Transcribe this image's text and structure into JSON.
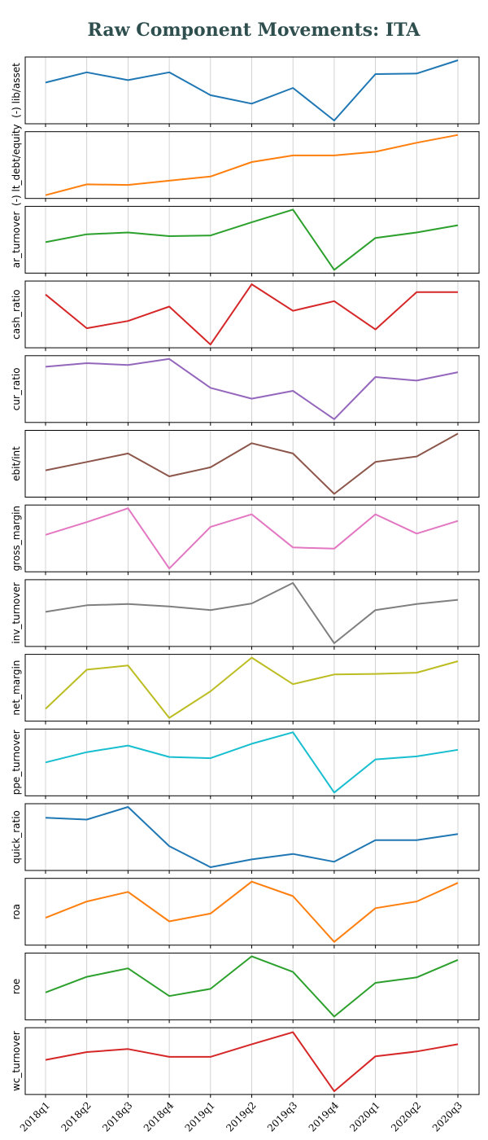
{
  "chart_data": {
    "type": "line",
    "title": "Raw Component Movements: ITA",
    "x": [
      "2018q1",
      "2018q2",
      "2018q3",
      "2018q4",
      "2019q1",
      "2019q2",
      "2019q3",
      "2019q4",
      "2020q1",
      "2020q2",
      "2020q3"
    ],
    "grid": "vertical",
    "panels": [
      {
        "ylabel": "(-) lib/asset",
        "color": "#1f77b4",
        "values": [
          0.63,
          0.8,
          0.67,
          0.8,
          0.42,
          0.28,
          0.54,
          0.0,
          0.77,
          0.78,
          1.0
        ]
      },
      {
        "ylabel": "(-) lt_debt/equity",
        "color": "#ff7f0e",
        "values": [
          0.0,
          0.18,
          0.17,
          0.24,
          0.31,
          0.55,
          0.66,
          0.66,
          0.72,
          0.87,
          1.0
        ]
      },
      {
        "ylabel": "ar_turnover",
        "color": "#2ca02c",
        "values": [
          0.46,
          0.59,
          0.62,
          0.56,
          0.57,
          0.79,
          1.0,
          0.0,
          0.53,
          0.62,
          0.74
        ]
      },
      {
        "ylabel": "cash_ratio",
        "color": "#d62728",
        "values": [
          0.83,
          0.27,
          0.39,
          0.63,
          0.0,
          1.0,
          0.56,
          0.72,
          0.25,
          0.87,
          0.87
        ]
      },
      {
        "ylabel": "cur_ratio",
        "color": "#9467bd",
        "values": [
          0.87,
          0.93,
          0.9,
          1.0,
          0.52,
          0.34,
          0.47,
          0.0,
          0.7,
          0.64,
          0.78
        ]
      },
      {
        "ylabel": "ebit/int",
        "color": "#8c564b",
        "values": [
          0.39,
          0.53,
          0.67,
          0.29,
          0.44,
          0.84,
          0.67,
          0.0,
          0.53,
          0.62,
          1.0
        ]
      },
      {
        "ylabel": "gross_margin",
        "color": "#e377c2",
        "values": [
          0.56,
          0.77,
          1.0,
          0.0,
          0.69,
          0.9,
          0.35,
          0.33,
          0.9,
          0.58,
          0.79
        ]
      },
      {
        "ylabel": "inv_turnover",
        "color": "#7f7f7f",
        "values": [
          0.52,
          0.63,
          0.65,
          0.61,
          0.55,
          0.66,
          1.0,
          0.0,
          0.55,
          0.65,
          0.72
        ]
      },
      {
        "ylabel": "net_margin",
        "color": "#bcbd22",
        "values": [
          0.15,
          0.8,
          0.87,
          0.0,
          0.44,
          1.0,
          0.56,
          0.72,
          0.73,
          0.75,
          0.94
        ]
      },
      {
        "ylabel": "ppe_turnover",
        "color": "#17becf",
        "values": [
          0.5,
          0.67,
          0.78,
          0.59,
          0.57,
          0.81,
          1.0,
          0.0,
          0.55,
          0.6,
          0.71
        ]
      },
      {
        "ylabel": "quick_ratio",
        "color": "#1f77b4",
        "values": [
          0.82,
          0.79,
          1.0,
          0.35,
          0.0,
          0.13,
          0.22,
          0.09,
          0.45,
          0.45,
          0.55
        ]
      },
      {
        "ylabel": "roa",
        "color": "#ff7f0e",
        "values": [
          0.4,
          0.67,
          0.83,
          0.34,
          0.47,
          1.0,
          0.76,
          0.0,
          0.56,
          0.67,
          0.98
        ]
      },
      {
        "ylabel": "roe",
        "color": "#2ca02c",
        "values": [
          0.4,
          0.66,
          0.8,
          0.34,
          0.46,
          1.0,
          0.74,
          0.0,
          0.56,
          0.65,
          0.94
        ]
      },
      {
        "ylabel": "wc_turnover",
        "color": "#d62728",
        "values": [
          0.52,
          0.65,
          0.7,
          0.57,
          0.57,
          0.78,
          0.98,
          0.0,
          0.58,
          0.66,
          0.78
        ]
      }
    ]
  }
}
